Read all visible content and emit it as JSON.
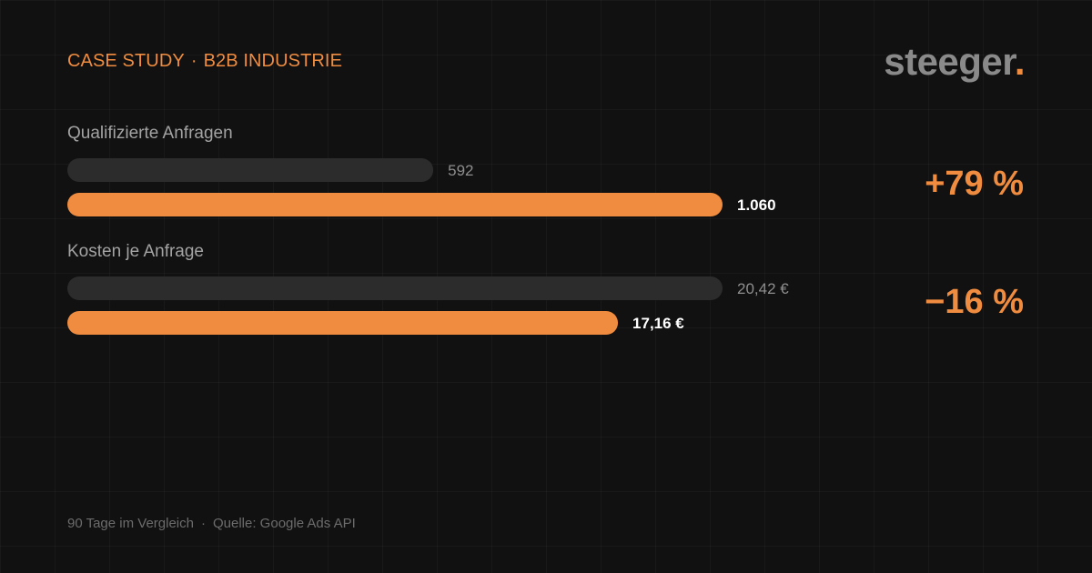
{
  "header": {
    "eyebrow_left": "CASE STUDY",
    "eyebrow_sep": "·",
    "eyebrow_right": "B2B INDUSTRIE",
    "logo_text": "steeger",
    "logo_dot": "."
  },
  "colors": {
    "accent": "#ef8c3f",
    "track": "#2c2c2c",
    "background": "#111111"
  },
  "chart_data": {
    "type": "bar",
    "orientation": "horizontal",
    "groups": [
      {
        "label": "Qualifizierte Anfragen",
        "change": "+79 %",
        "max": 1060,
        "bars": [
          {
            "value": 592,
            "label": "592",
            "style": "before"
          },
          {
            "value": 1060,
            "label": "1.060",
            "style": "after"
          }
        ]
      },
      {
        "label": "Kosten je Anfrage",
        "change": "−16 %",
        "max": 20.42,
        "bars": [
          {
            "value": 20.42,
            "label": "20,42 €",
            "style": "before"
          },
          {
            "value": 17.16,
            "label": "17,16 €",
            "style": "after"
          }
        ]
      }
    ]
  },
  "footer": {
    "period": "90 Tage im Vergleich",
    "sep": "·",
    "source": "Quelle: Google Ads API"
  }
}
